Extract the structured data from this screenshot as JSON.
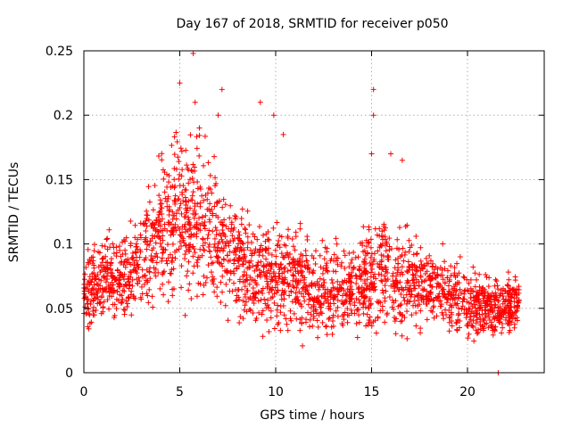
{
  "chart_data": {
    "type": "scatter",
    "title": "Day 167 of 2018, SRMTID for receiver p050",
    "xlabel": "GPS time / hours",
    "ylabel": "SRMTID / TECUs",
    "xlim": [
      0,
      24
    ],
    "ylim": [
      0,
      0.25
    ],
    "x_ticks": [
      0,
      5,
      10,
      15,
      20
    ],
    "x_tick_labels": [
      "0",
      "5",
      "10",
      "15",
      "20"
    ],
    "y_ticks": [
      0,
      0.05,
      0.1,
      0.15,
      0.2,
      0.25
    ],
    "y_tick_labels": [
      "0",
      "0.05",
      "0.1",
      "0.15",
      "0.2",
      "0.25"
    ],
    "grid": true,
    "marker": "+",
    "color": "#ff0000",
    "series": [
      {
        "name": "SRMTID",
        "envelope": {
          "x": [
            0,
            1,
            2,
            3,
            4,
            5,
            6,
            7,
            8,
            9,
            10,
            11,
            12,
            13,
            14,
            15,
            16,
            17,
            18,
            19,
            20,
            21,
            22,
            22.7
          ],
          "y_mean": [
            0.06,
            0.075,
            0.075,
            0.085,
            0.11,
            0.125,
            0.12,
            0.105,
            0.085,
            0.08,
            0.075,
            0.075,
            0.06,
            0.065,
            0.065,
            0.075,
            0.075,
            0.07,
            0.068,
            0.062,
            0.055,
            0.052,
            0.05,
            0.055
          ],
          "y_spread": [
            0.025,
            0.025,
            0.025,
            0.035,
            0.045,
            0.055,
            0.055,
            0.05,
            0.035,
            0.035,
            0.035,
            0.035,
            0.03,
            0.03,
            0.03,
            0.035,
            0.035,
            0.03,
            0.025,
            0.025,
            0.025,
            0.02,
            0.02,
            0.02
          ]
        },
        "approx_point_count": 2400,
        "highlights": [
          {
            "x": 5.0,
            "y": 0.225
          },
          {
            "x": 5.7,
            "y": 0.248
          },
          {
            "x": 5.8,
            "y": 0.21
          },
          {
            "x": 7.0,
            "y": 0.2
          },
          {
            "x": 7.2,
            "y": 0.22
          },
          {
            "x": 9.2,
            "y": 0.21
          },
          {
            "x": 9.9,
            "y": 0.2
          },
          {
            "x": 10.4,
            "y": 0.185
          },
          {
            "x": 15.1,
            "y": 0.22
          },
          {
            "x": 15.1,
            "y": 0.2
          },
          {
            "x": 15.0,
            "y": 0.17
          },
          {
            "x": 16.0,
            "y": 0.17
          },
          {
            "x": 16.6,
            "y": 0.165
          },
          {
            "x": 21.6,
            "y": 0.0
          }
        ]
      }
    ]
  }
}
